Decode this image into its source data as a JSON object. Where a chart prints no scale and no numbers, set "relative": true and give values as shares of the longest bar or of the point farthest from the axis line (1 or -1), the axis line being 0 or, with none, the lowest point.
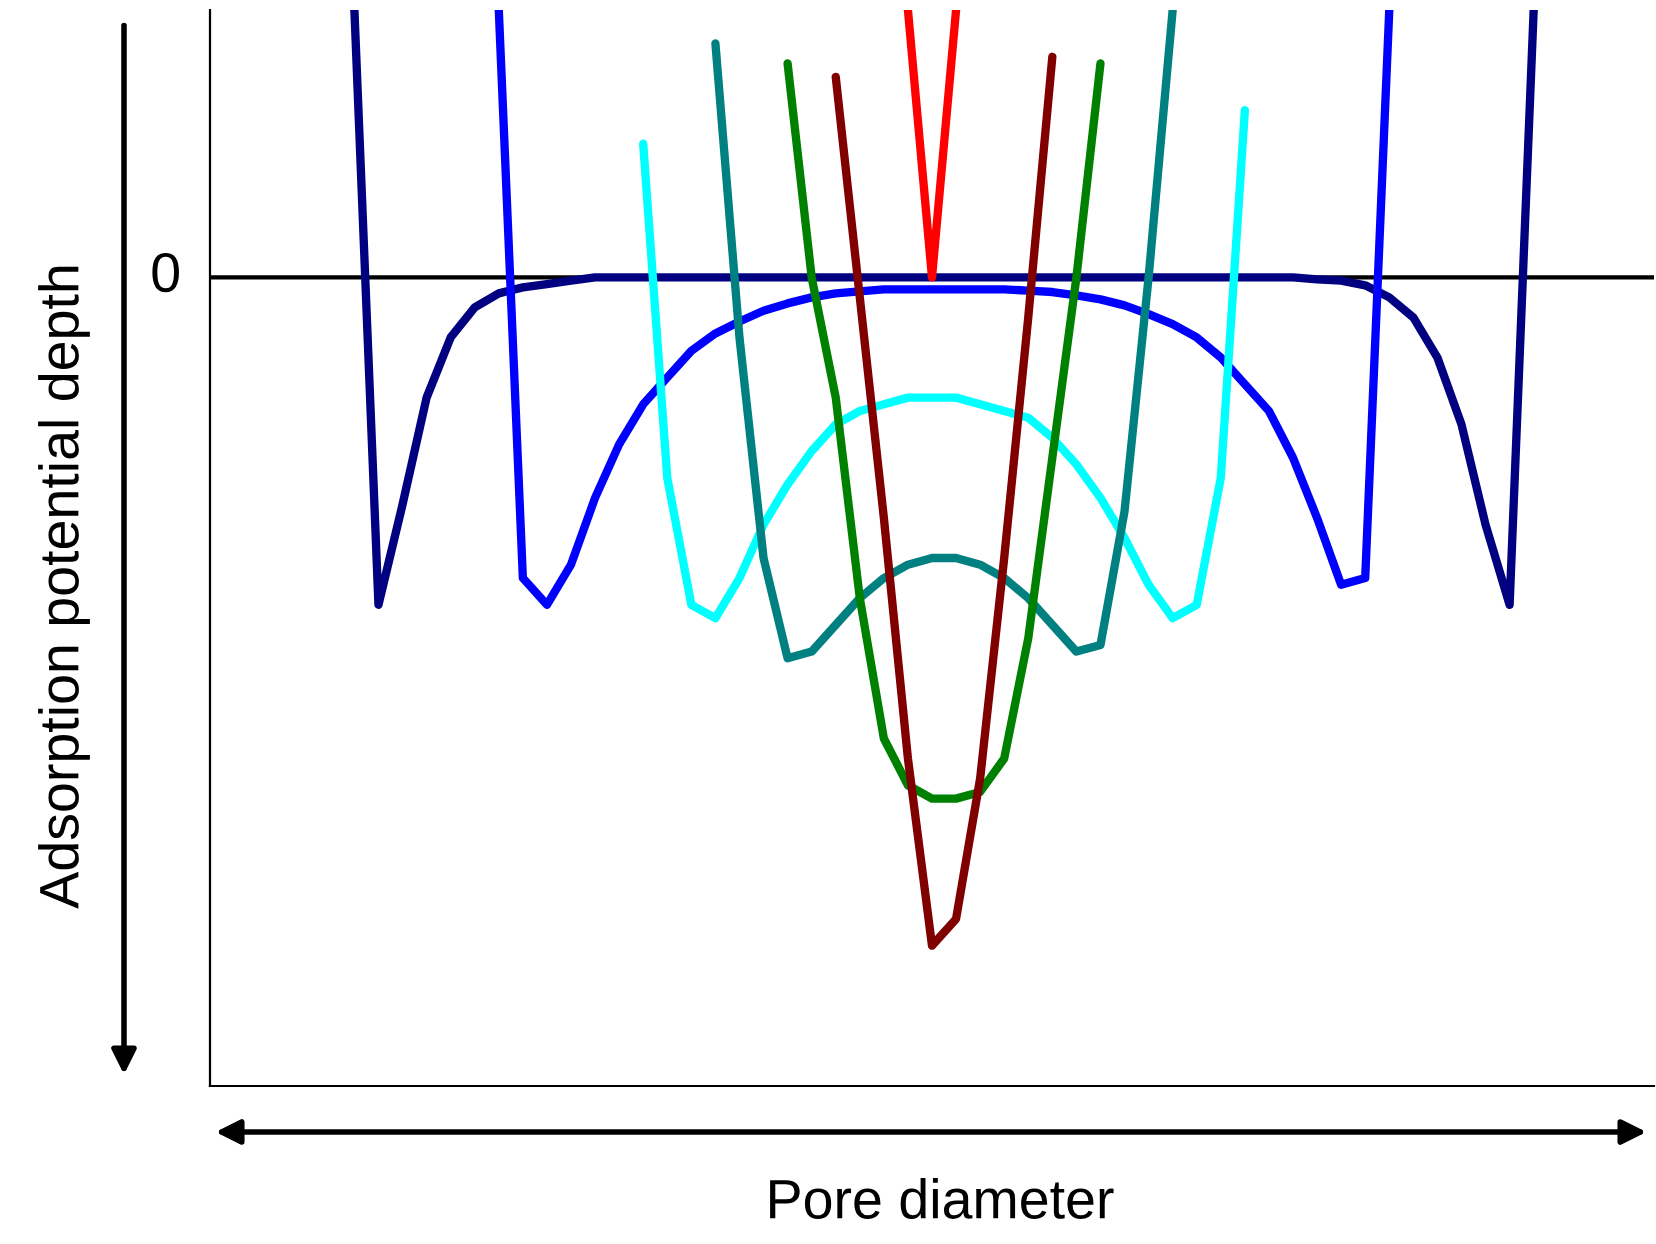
{
  "chart_data": {
    "type": "line",
    "relative": true,
    "xlabel": "Pore diameter",
    "ylabel": "Adsorption potential depth",
    "categories": [
      null,
      null,
      null,
      null,
      null,
      null,
      null,
      null,
      null,
      null,
      null,
      null,
      null,
      null,
      null,
      null,
      null,
      null,
      null,
      null,
      null,
      null,
      null,
      null,
      null,
      null,
      null,
      null,
      null,
      null,
      null,
      null,
      null,
      null,
      null,
      null,
      null,
      null,
      null,
      null,
      null,
      null,
      null,
      null,
      null,
      null,
      null,
      null,
      null,
      null,
      null,
      null,
      null,
      null,
      null,
      null,
      null,
      null,
      null,
      null,
      null
    ],
    "ref_lines": [
      {
        "axis": "y",
        "value": 0,
        "label": "0",
        "color": "#000000"
      }
    ],
    "grid": false,
    "legend": false,
    "marker": "none",
    "line_style": "solid",
    "series": [
      {
        "color": "#000080",
        "values": [
          null,
          null,
          null,
          null,
          null,
          null,
          0.4,
          -0.49,
          -0.34,
          -0.18,
          -0.09,
          -0.045,
          -0.024,
          -0.015,
          -0.01,
          -0.005,
          0,
          0,
          0,
          0,
          0,
          0,
          0,
          0,
          0,
          0,
          0,
          0,
          0,
          0,
          0,
          0,
          0,
          0,
          0,
          0,
          0,
          0,
          0,
          0,
          0,
          0,
          0,
          0,
          0,
          0,
          -0.003,
          -0.005,
          -0.012,
          -0.03,
          -0.06,
          -0.12,
          -0.22,
          -0.37,
          -0.49,
          0.4,
          null,
          null,
          null,
          null,
          null
        ]
      },
      {
        "color": "#0000ff",
        "values": [
          null,
          null,
          null,
          null,
          null,
          null,
          null,
          null,
          null,
          null,
          null,
          null,
          0.4,
          -0.45,
          -0.49,
          -0.43,
          -0.33,
          -0.25,
          -0.19,
          -0.15,
          -0.11,
          -0.084,
          -0.066,
          -0.05,
          -0.039,
          -0.03,
          -0.024,
          -0.021,
          -0.018,
          -0.018,
          -0.018,
          -0.018,
          -0.018,
          -0.018,
          -0.02,
          -0.022,
          -0.027,
          -0.033,
          -0.042,
          -0.055,
          -0.07,
          -0.09,
          -0.12,
          -0.16,
          -0.2,
          -0.27,
          -0.36,
          -0.46,
          -0.45,
          0.4,
          null,
          null,
          null,
          null,
          null,
          null,
          null,
          null,
          null,
          null,
          null
        ]
      },
      {
        "color": "#00ffff",
        "values": [
          null,
          null,
          null,
          null,
          null,
          null,
          null,
          null,
          null,
          null,
          null,
          null,
          null,
          null,
          null,
          null,
          null,
          null,
          0.2,
          -0.3,
          -0.49,
          -0.51,
          -0.45,
          -0.37,
          -0.31,
          -0.26,
          -0.22,
          -0.2,
          -0.19,
          -0.18,
          -0.18,
          -0.18,
          -0.19,
          -0.2,
          -0.21,
          -0.24,
          -0.28,
          -0.33,
          -0.39,
          -0.46,
          -0.51,
          -0.49,
          -0.3,
          0.25,
          null,
          null,
          null,
          null,
          null,
          null,
          null,
          null,
          null,
          null,
          null,
          null,
          null,
          null,
          null,
          null,
          null
        ]
      },
      {
        "color": "#008080",
        "values": [
          null,
          null,
          null,
          null,
          null,
          null,
          null,
          null,
          null,
          null,
          null,
          null,
          null,
          null,
          null,
          null,
          null,
          null,
          null,
          null,
          null,
          0.35,
          -0.09,
          -0.42,
          -0.57,
          -0.56,
          -0.52,
          -0.48,
          -0.45,
          -0.43,
          -0.42,
          -0.42,
          -0.43,
          -0.45,
          -0.48,
          -0.52,
          -0.56,
          -0.55,
          -0.35,
          0,
          0.4,
          null,
          null,
          null,
          null,
          null,
          null,
          null,
          null,
          null,
          null,
          null,
          null,
          null,
          null,
          null,
          null,
          null,
          null,
          null,
          null
        ]
      },
      {
        "color": "#008000",
        "values": [
          null,
          null,
          null,
          null,
          null,
          null,
          null,
          null,
          null,
          null,
          null,
          null,
          null,
          null,
          null,
          null,
          null,
          null,
          null,
          null,
          null,
          null,
          null,
          null,
          0.32,
          0,
          -0.18,
          -0.48,
          -0.69,
          -0.76,
          -0.78,
          -0.78,
          -0.77,
          -0.72,
          -0.54,
          -0.27,
          0,
          0.32,
          null,
          null,
          null,
          null,
          null,
          null,
          null,
          null,
          null,
          null,
          null,
          null,
          null,
          null,
          null,
          null,
          null,
          null,
          null,
          null,
          null,
          null,
          null
        ]
      },
      {
        "color": "#800000",
        "values": [
          null,
          null,
          null,
          null,
          null,
          null,
          null,
          null,
          null,
          null,
          null,
          null,
          null,
          null,
          null,
          null,
          null,
          null,
          null,
          null,
          null,
          null,
          null,
          null,
          null,
          null,
          0.3,
          -0.03,
          -0.36,
          -0.72,
          -1,
          -0.96,
          -0.75,
          -0.42,
          -0.06,
          0.33,
          null,
          null,
          null,
          null,
          null,
          null,
          null,
          null,
          null,
          null,
          null,
          null,
          null,
          null,
          null,
          null,
          null,
          null,
          null,
          null,
          null,
          null,
          null,
          null,
          null
        ]
      },
      {
        "color": "#ff0000",
        "values": [
          null,
          null,
          null,
          null,
          null,
          null,
          null,
          null,
          null,
          null,
          null,
          null,
          null,
          null,
          null,
          null,
          null,
          null,
          null,
          null,
          null,
          null,
          null,
          null,
          null,
          null,
          null,
          null,
          null,
          0.4,
          0,
          0.4,
          null,
          null,
          null,
          null,
          null,
          null,
          null,
          null,
          null,
          null,
          null,
          null,
          null,
          null,
          null,
          null,
          null,
          null,
          null,
          null,
          null,
          null,
          null,
          null,
          null,
          null,
          null,
          null,
          null
        ]
      }
    ]
  }
}
